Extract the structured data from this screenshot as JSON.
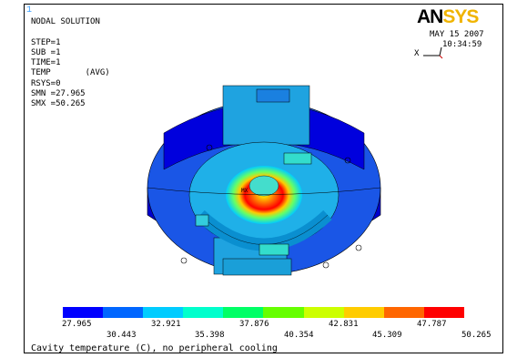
{
  "window_number": "1",
  "info": {
    "lines": [
      "NODAL SOLUTION",
      "STEP=1",
      "SUB =1",
      "TIME=1",
      "TEMP       (AVG)",
      "RSYS=0",
      "SMN =27.965",
      "SMX =50.265"
    ]
  },
  "logo": {
    "part1": "AN",
    "part2": "SYS"
  },
  "date": "MAY 15 2007",
  "time": "10:34:59",
  "triad": {
    "x_label": "X",
    "y_label": "Y"
  },
  "model_labels": {
    "mx": "MX",
    "mn": "MN"
  },
  "legend": {
    "colors": [
      "#0000ff",
      "#0066ff",
      "#00ccff",
      "#00ffcc",
      "#00ff66",
      "#66ff00",
      "#ccff00",
      "#ffcc00",
      "#ff6600",
      "#ff0000"
    ],
    "top_values": [
      "27.965",
      "32.921",
      "37.876",
      "42.831",
      "47.787"
    ],
    "bottom_values": [
      "30.443",
      "35.398",
      "40.354",
      "45.309",
      "50.265"
    ]
  },
  "caption": "Cavity temperature (C), no peripheral cooling"
}
